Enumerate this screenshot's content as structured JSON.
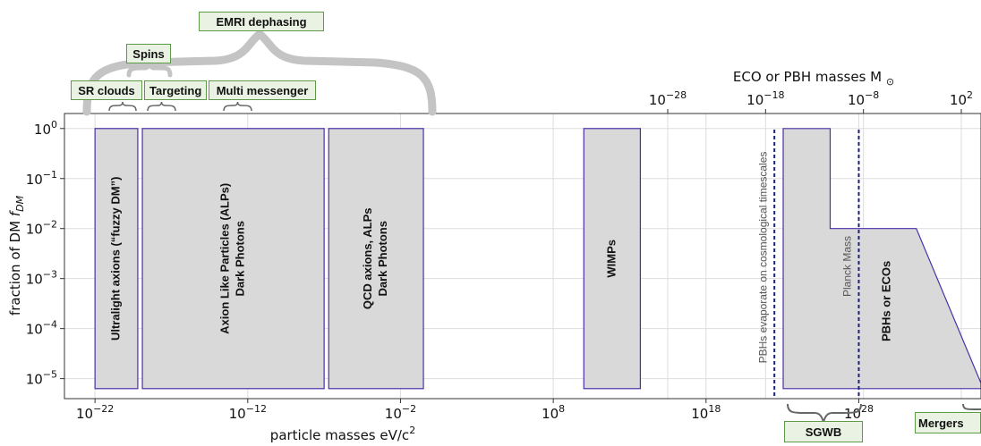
{
  "chart_data": {
    "type": "area",
    "top_axis": {
      "label": "ECO or PBH masses M_⊙",
      "label_text": "ECO or PBH masses M",
      "label_sub": "⊙",
      "scale": "log",
      "ticks": [
        {
          "value": -28,
          "label": "10",
          "exp": "−28"
        },
        {
          "value": -18,
          "label": "10",
          "exp": "−18"
        },
        {
          "value": -8,
          "label": "10",
          "exp": "−8"
        },
        {
          "value": 2,
          "label": "10",
          "exp": "2"
        }
      ]
    },
    "xaxis": {
      "label": "particle masses eV/c²",
      "label_text": "particle masses eV/c",
      "label_sup": "2",
      "scale": "log",
      "xlim_log10": [
        -24,
        36
      ],
      "ticks": [
        {
          "value": -22,
          "base": "10",
          "exp": "−22"
        },
        {
          "value": -12,
          "base": "10",
          "exp": "−12"
        },
        {
          "value": -2,
          "base": "10",
          "exp": "−2"
        },
        {
          "value": 8,
          "base": "10",
          "exp": "8"
        },
        {
          "value": 18,
          "base": "10",
          "exp": "18"
        },
        {
          "value": 28,
          "base": "10",
          "exp": "28"
        }
      ]
    },
    "yaxis": {
      "label": "fraction of DM f_DM",
      "label_text": "fraction of DM ",
      "label_var": "f",
      "label_sub": "DM",
      "scale": "log",
      "ylim_log10": [
        -5.4,
        0.3
      ],
      "ticks": [
        {
          "value": 0,
          "base": "10",
          "exp": "0"
        },
        {
          "value": -1,
          "base": "10",
          "exp": "−1"
        },
        {
          "value": -2,
          "base": "10",
          "exp": "−2"
        },
        {
          "value": -3,
          "base": "10",
          "exp": "−3"
        },
        {
          "value": -4,
          "base": "10",
          "exp": "−4"
        },
        {
          "value": -5,
          "base": "10",
          "exp": "−5"
        }
      ]
    },
    "regions": [
      {
        "name": "ultralight-axions",
        "label": "Ultralight axions (“fuzzy DM”)",
        "lines": [
          "Ultralight axions (“fuzzy DM”)"
        ],
        "x_log10": [
          -22,
          -19.2
        ],
        "y_log10": [
          -5.2,
          0
        ]
      },
      {
        "name": "alps-dark-photons",
        "label": "Axion Like Particles (ALPs) Dark Photons",
        "lines": [
          "Axion Like Particles (ALPs)",
          "Dark Photons"
        ],
        "x_log10": [
          -18.9,
          -7
        ],
        "y_log10": [
          -5.2,
          0
        ]
      },
      {
        "name": "qcd-axions",
        "label": "QCD axions, ALPs Dark Photons",
        "lines": [
          "QCD axions, ALPs",
          "Dark Photons"
        ],
        "x_log10": [
          -6.7,
          -0.5
        ],
        "y_log10": [
          -5.2,
          0
        ]
      },
      {
        "name": "wimps",
        "label": "WIMPs",
        "lines": [
          "WIMPs"
        ],
        "x_log10": [
          10,
          13.7
        ],
        "y_log10": [
          -5.2,
          0
        ]
      }
    ],
    "pbh_region": {
      "label": "PBHs or ECOs",
      "points_log10": [
        [
          -16.2,
          0
        ],
        [
          -11.4,
          0
        ],
        [
          -11.4,
          -2
        ],
        [
          -2.6,
          -2
        ],
        [
          0,
          -5.2
        ],
        [
          0,
          -5.2
        ],
        [
          -16.2,
          -5.2
        ]
      ],
      "axis": "top"
    },
    "vlines": [
      {
        "label": "Planck Mass",
        "x_log10": 28,
        "axis": "bottom"
      },
      {
        "label": "PBHs evaporate on cosmological timescales",
        "x_log10": -17.1,
        "axis": "top"
      }
    ],
    "grid": true,
    "colors": {
      "fill": "#d9d9d9",
      "edge": "#4b2ea8",
      "vline": "#1a237e",
      "tag_fill": "#e9f2e3",
      "tag_edge": "#5e9a4a",
      "brace": "#c4c4c4"
    }
  },
  "annotations": {
    "emri": "EMRI dephasing",
    "spins": "Spins",
    "sr_clouds": "SR clouds",
    "targeting": "Targeting",
    "multi_messenger": "Multi messenger",
    "sgwb": "SGWB",
    "mergers": "Mergers"
  }
}
